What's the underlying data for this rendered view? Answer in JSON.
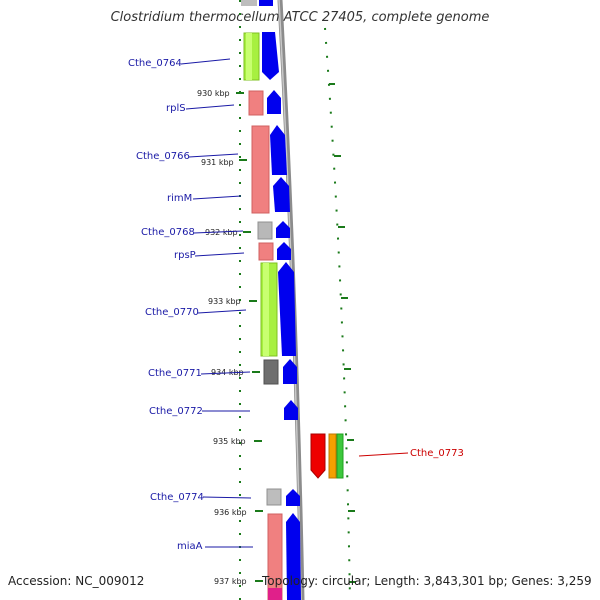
{
  "title": "Clostridium thermocellum ATCC 27405, complete genome",
  "accession": "Accession: NC_009012",
  "topology": "Topology: circular; Length: 3,843,301 bp; Genes: 3,259",
  "colors": {
    "label_blue": "#1a1aa6",
    "label_red": "#cc0000",
    "tick_green": "#1a7a1a",
    "backbone": "#909090",
    "cds_blue": "#0000ee"
  },
  "kbp_ticks": [
    "930 kbp",
    "931 kbp",
    "932 kbp",
    "933 kbp",
    "934 kbp",
    "935 kbp",
    "936 kbp",
    "937 kbp"
  ],
  "gene_labels": [
    {
      "name": "Cthe_0764"
    },
    {
      "name": "rplS"
    },
    {
      "name": "Cthe_0766"
    },
    {
      "name": "rimM"
    },
    {
      "name": "Cthe_0768"
    },
    {
      "name": "rpsP"
    },
    {
      "name": "Cthe_0770"
    },
    {
      "name": "Cthe_0771"
    },
    {
      "name": "Cthe_0772"
    },
    {
      "name": "Cthe_0773"
    },
    {
      "name": "Cthe_0774"
    },
    {
      "name": "miaA"
    }
  ]
}
